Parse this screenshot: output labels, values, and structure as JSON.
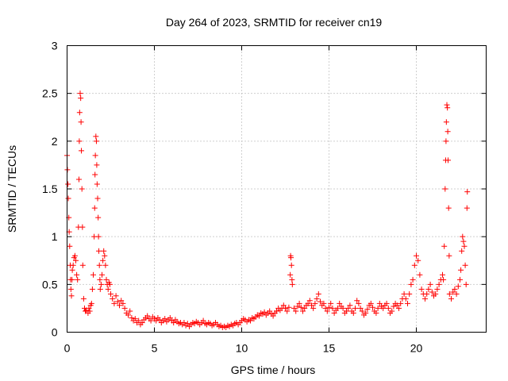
{
  "chart_data": {
    "type": "scatter",
    "title": "Day 264 of 2023, SRMTID for receiver cn19",
    "xlabel": "GPS time / hours",
    "ylabel": "SRMTID / TECUs",
    "xlim": [
      0,
      24
    ],
    "ylim": [
      0,
      3
    ],
    "xticks": [
      0,
      5,
      10,
      15,
      20
    ],
    "xtick_labels": [
      "0",
      "5",
      "10",
      "15",
      "20"
    ],
    "yticks": [
      0,
      0.5,
      1,
      1.5,
      2,
      2.5,
      3
    ],
    "ytick_labels": [
      "0",
      "0.5",
      "1",
      "1.5",
      "2",
      "2.5",
      "3"
    ],
    "grid": true,
    "marker": "+",
    "series": [
      {
        "name": "SRMTID",
        "color": "#ff0000",
        "points": [
          [
            0.0,
            1.85
          ],
          [
            0.02,
            1.7
          ],
          [
            0.05,
            1.55
          ],
          [
            0.07,
            1.4
          ],
          [
            0.1,
            1.2
          ],
          [
            0.12,
            1.05
          ],
          [
            0.15,
            0.9
          ],
          [
            0.18,
            0.7
          ],
          [
            0.2,
            0.55
          ],
          [
            0.22,
            0.45
          ],
          [
            0.25,
            0.38
          ],
          [
            0.28,
            0.55
          ],
          [
            0.3,
            0.65
          ],
          [
            0.35,
            0.7
          ],
          [
            0.4,
            0.78
          ],
          [
            0.45,
            0.8
          ],
          [
            0.5,
            0.75
          ],
          [
            0.55,
            0.6
          ],
          [
            0.6,
            0.55
          ],
          [
            0.65,
            1.1
          ],
          [
            0.68,
            1.6
          ],
          [
            0.7,
            2.0
          ],
          [
            0.72,
            2.3
          ],
          [
            0.75,
            2.5
          ],
          [
            0.78,
            2.45
          ],
          [
            0.8,
            2.2
          ],
          [
            0.82,
            1.9
          ],
          [
            0.85,
            1.5
          ],
          [
            0.88,
            1.1
          ],
          [
            0.9,
            0.7
          ],
          [
            0.95,
            0.35
          ],
          [
            1.0,
            0.25
          ],
          [
            1.05,
            0.22
          ],
          [
            1.1,
            0.23
          ],
          [
            1.2,
            0.2
          ],
          [
            1.25,
            0.25
          ],
          [
            1.3,
            0.22
          ],
          [
            1.35,
            0.28
          ],
          [
            1.4,
            0.3
          ],
          [
            1.45,
            0.45
          ],
          [
            1.5,
            0.6
          ],
          [
            1.55,
            1.0
          ],
          [
            1.58,
            1.3
          ],
          [
            1.6,
            1.65
          ],
          [
            1.62,
            1.85
          ],
          [
            1.65,
            2.05
          ],
          [
            1.68,
            2.0
          ],
          [
            1.7,
            1.75
          ],
          [
            1.72,
            1.55
          ],
          [
            1.75,
            1.4
          ],
          [
            1.78,
            1.2
          ],
          [
            1.8,
            1.0
          ],
          [
            1.82,
            0.85
          ],
          [
            1.85,
            0.7
          ],
          [
            1.88,
            0.55
          ],
          [
            1.9,
            0.45
          ],
          [
            1.95,
            0.5
          ],
          [
            2.0,
            0.6
          ],
          [
            2.05,
            0.75
          ],
          [
            2.1,
            0.85
          ],
          [
            2.15,
            0.8
          ],
          [
            2.2,
            0.7
          ],
          [
            2.25,
            0.55
          ],
          [
            2.3,
            0.5
          ],
          [
            2.35,
            0.45
          ],
          [
            2.4,
            0.52
          ],
          [
            2.45,
            0.5
          ],
          [
            2.5,
            0.4
          ],
          [
            2.6,
            0.35
          ],
          [
            2.7,
            0.3
          ],
          [
            2.8,
            0.38
          ],
          [
            2.9,
            0.32
          ],
          [
            3.0,
            0.28
          ],
          [
            3.1,
            0.33
          ],
          [
            3.2,
            0.3
          ],
          [
            3.3,
            0.25
          ],
          [
            3.4,
            0.2
          ],
          [
            3.5,
            0.18
          ],
          [
            3.6,
            0.22
          ],
          [
            3.7,
            0.15
          ],
          [
            3.8,
            0.12
          ],
          [
            3.9,
            0.14
          ],
          [
            4.0,
            0.1
          ],
          [
            4.1,
            0.12
          ],
          [
            4.2,
            0.08
          ],
          [
            4.3,
            0.1
          ],
          [
            4.4,
            0.13
          ],
          [
            4.5,
            0.15
          ],
          [
            4.6,
            0.17
          ],
          [
            4.7,
            0.14
          ],
          [
            4.8,
            0.12
          ],
          [
            4.9,
            0.16
          ],
          [
            5.0,
            0.14
          ],
          [
            5.1,
            0.12
          ],
          [
            5.2,
            0.15
          ],
          [
            5.3,
            0.13
          ],
          [
            5.4,
            0.1
          ],
          [
            5.5,
            0.12
          ],
          [
            5.6,
            0.14
          ],
          [
            5.7,
            0.11
          ],
          [
            5.8,
            0.13
          ],
          [
            5.9,
            0.15
          ],
          [
            6.0,
            0.12
          ],
          [
            6.1,
            0.1
          ],
          [
            6.2,
            0.13
          ],
          [
            6.3,
            0.11
          ],
          [
            6.4,
            0.09
          ],
          [
            6.5,
            0.1
          ],
          [
            6.6,
            0.08
          ],
          [
            6.7,
            0.1
          ],
          [
            6.8,
            0.07
          ],
          [
            6.9,
            0.09
          ],
          [
            7.0,
            0.06
          ],
          [
            7.1,
            0.08
          ],
          [
            7.2,
            0.1
          ],
          [
            7.3,
            0.09
          ],
          [
            7.4,
            0.11
          ],
          [
            7.5,
            0.1
          ],
          [
            7.6,
            0.08
          ],
          [
            7.7,
            0.1
          ],
          [
            7.8,
            0.12
          ],
          [
            7.9,
            0.09
          ],
          [
            8.0,
            0.08
          ],
          [
            8.1,
            0.1
          ],
          [
            8.2,
            0.09
          ],
          [
            8.3,
            0.07
          ],
          [
            8.4,
            0.08
          ],
          [
            8.5,
            0.1
          ],
          [
            8.6,
            0.08
          ],
          [
            8.7,
            0.06
          ],
          [
            8.8,
            0.07
          ],
          [
            8.9,
            0.05
          ],
          [
            9.0,
            0.06
          ],
          [
            9.1,
            0.05
          ],
          [
            9.2,
            0.07
          ],
          [
            9.3,
            0.06
          ],
          [
            9.4,
            0.08
          ],
          [
            9.5,
            0.07
          ],
          [
            9.6,
            0.09
          ],
          [
            9.7,
            0.1
          ],
          [
            9.8,
            0.08
          ],
          [
            9.9,
            0.1
          ],
          [
            10.0,
            0.12
          ],
          [
            10.1,
            0.14
          ],
          [
            10.2,
            0.13
          ],
          [
            10.3,
            0.11
          ],
          [
            10.4,
            0.13
          ],
          [
            10.5,
            0.12
          ],
          [
            10.6,
            0.15
          ],
          [
            10.7,
            0.14
          ],
          [
            10.8,
            0.16
          ],
          [
            10.9,
            0.18
          ],
          [
            11.0,
            0.17
          ],
          [
            11.1,
            0.2
          ],
          [
            11.2,
            0.19
          ],
          [
            11.3,
            0.21
          ],
          [
            11.4,
            0.18
          ],
          [
            11.5,
            0.2
          ],
          [
            11.6,
            0.22
          ],
          [
            11.7,
            0.19
          ],
          [
            11.8,
            0.17
          ],
          [
            11.9,
            0.2
          ],
          [
            12.0,
            0.22
          ],
          [
            12.1,
            0.25
          ],
          [
            12.2,
            0.23
          ],
          [
            12.3,
            0.25
          ],
          [
            12.4,
            0.28
          ],
          [
            12.5,
            0.25
          ],
          [
            12.6,
            0.22
          ],
          [
            12.7,
            0.26
          ],
          [
            12.78,
            0.6
          ],
          [
            12.8,
            0.8
          ],
          [
            12.82,
            0.78
          ],
          [
            12.85,
            0.7
          ],
          [
            12.88,
            0.55
          ],
          [
            12.9,
            0.5
          ],
          [
            13.0,
            0.25
          ],
          [
            13.1,
            0.22
          ],
          [
            13.2,
            0.27
          ],
          [
            13.3,
            0.3
          ],
          [
            13.4,
            0.26
          ],
          [
            13.5,
            0.22
          ],
          [
            13.6,
            0.25
          ],
          [
            13.7,
            0.28
          ],
          [
            13.8,
            0.3
          ],
          [
            13.9,
            0.33
          ],
          [
            14.0,
            0.28
          ],
          [
            14.1,
            0.25
          ],
          [
            14.2,
            0.3
          ],
          [
            14.3,
            0.35
          ],
          [
            14.4,
            0.4
          ],
          [
            14.5,
            0.32
          ],
          [
            14.6,
            0.28
          ],
          [
            14.7,
            0.3
          ],
          [
            14.8,
            0.25
          ],
          [
            14.9,
            0.22
          ],
          [
            15.0,
            0.26
          ],
          [
            15.1,
            0.3
          ],
          [
            15.2,
            0.25
          ],
          [
            15.3,
            0.2
          ],
          [
            15.4,
            0.23
          ],
          [
            15.5,
            0.25
          ],
          [
            15.6,
            0.3
          ],
          [
            15.7,
            0.27
          ],
          [
            15.8,
            0.25
          ],
          [
            15.9,
            0.2
          ],
          [
            16.0,
            0.22
          ],
          [
            16.1,
            0.25
          ],
          [
            16.2,
            0.28
          ],
          [
            16.3,
            0.22
          ],
          [
            16.4,
            0.2
          ],
          [
            16.5,
            0.25
          ],
          [
            16.6,
            0.33
          ],
          [
            16.7,
            0.3
          ],
          [
            16.8,
            0.25
          ],
          [
            16.9,
            0.22
          ],
          [
            17.0,
            0.18
          ],
          [
            17.1,
            0.2
          ],
          [
            17.2,
            0.24
          ],
          [
            17.3,
            0.28
          ],
          [
            17.4,
            0.3
          ],
          [
            17.5,
            0.26
          ],
          [
            17.6,
            0.22
          ],
          [
            17.7,
            0.2
          ],
          [
            17.8,
            0.25
          ],
          [
            17.9,
            0.3
          ],
          [
            18.0,
            0.27
          ],
          [
            18.1,
            0.25
          ],
          [
            18.2,
            0.28
          ],
          [
            18.3,
            0.3
          ],
          [
            18.4,
            0.25
          ],
          [
            18.5,
            0.2
          ],
          [
            18.6,
            0.22
          ],
          [
            18.7,
            0.27
          ],
          [
            18.8,
            0.3
          ],
          [
            18.9,
            0.28
          ],
          [
            19.0,
            0.25
          ],
          [
            19.1,
            0.3
          ],
          [
            19.2,
            0.35
          ],
          [
            19.3,
            0.4
          ],
          [
            19.4,
            0.35
          ],
          [
            19.5,
            0.3
          ],
          [
            19.6,
            0.4
          ],
          [
            19.7,
            0.5
          ],
          [
            19.8,
            0.55
          ],
          [
            19.9,
            0.7
          ],
          [
            20.0,
            0.8
          ],
          [
            20.1,
            0.75
          ],
          [
            20.2,
            0.6
          ],
          [
            20.3,
            0.45
          ],
          [
            20.4,
            0.4
          ],
          [
            20.5,
            0.35
          ],
          [
            20.6,
            0.4
          ],
          [
            20.7,
            0.45
          ],
          [
            20.8,
            0.5
          ],
          [
            20.9,
            0.42
          ],
          [
            21.0,
            0.38
          ],
          [
            21.1,
            0.4
          ],
          [
            21.2,
            0.45
          ],
          [
            21.3,
            0.5
          ],
          [
            21.4,
            0.55
          ],
          [
            21.5,
            0.6
          ],
          [
            21.55,
            0.55
          ],
          [
            21.6,
            0.9
          ],
          [
            21.65,
            1.5
          ],
          [
            21.68,
            1.8
          ],
          [
            21.7,
            2.0
          ],
          [
            21.72,
            2.2
          ],
          [
            21.75,
            2.38
          ],
          [
            21.78,
            2.35
          ],
          [
            21.8,
            2.1
          ],
          [
            21.82,
            1.8
          ],
          [
            21.85,
            1.3
          ],
          [
            21.88,
            0.8
          ],
          [
            21.9,
            0.4
          ],
          [
            22.0,
            0.35
          ],
          [
            22.1,
            0.42
          ],
          [
            22.2,
            0.45
          ],
          [
            22.3,
            0.4
          ],
          [
            22.4,
            0.48
          ],
          [
            22.5,
            0.55
          ],
          [
            22.55,
            0.65
          ],
          [
            22.6,
            0.85
          ],
          [
            22.65,
            1.0
          ],
          [
            22.7,
            0.95
          ],
          [
            22.75,
            0.9
          ],
          [
            22.8,
            0.7
          ],
          [
            22.85,
            0.5
          ],
          [
            22.9,
            1.3
          ],
          [
            22.92,
            1.47
          ]
        ]
      }
    ]
  }
}
